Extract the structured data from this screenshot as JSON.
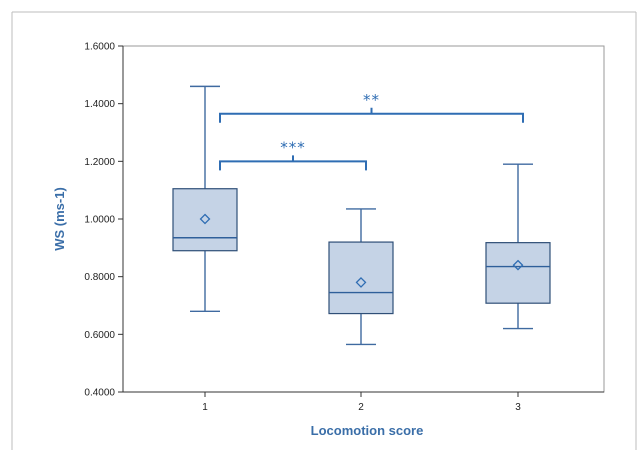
{
  "chart_data": {
    "type": "box",
    "xlabel": "Locomotion score",
    "ylabel": "WS (ms-1)",
    "ylim": [
      0.4,
      1.6
    ],
    "y_ticks": [
      "0.4000",
      "0.6000",
      "0.8000",
      "1.0000",
      "1.2000",
      "1.4000",
      "1.6000"
    ],
    "categories": [
      "1",
      "2",
      "3"
    ],
    "boxes": [
      {
        "category": "1",
        "min": 0.68,
        "q1": 0.89,
        "median": 0.935,
        "q3": 1.105,
        "max": 1.46,
        "mean": 1.0
      },
      {
        "category": "2",
        "min": 0.565,
        "q1": 0.672,
        "median": 0.745,
        "q3": 0.92,
        "max": 1.035,
        "mean": 0.78
      },
      {
        "category": "3",
        "min": 0.62,
        "q1": 0.708,
        "median": 0.835,
        "q3": 0.918,
        "max": 1.19,
        "mean": 0.84
      }
    ],
    "significance": [
      {
        "from": "1",
        "to": "2",
        "level": 1.2,
        "label": "***"
      },
      {
        "from": "1",
        "to": "3",
        "level": 1.365,
        "label": "**"
      }
    ],
    "grid": false,
    "legend": "none"
  },
  "colors": {
    "box_fill": "#c5d3e6",
    "box_edge": "#2f4f77",
    "accent": "#2f6db3",
    "axis_title": "#3a6ea8"
  }
}
